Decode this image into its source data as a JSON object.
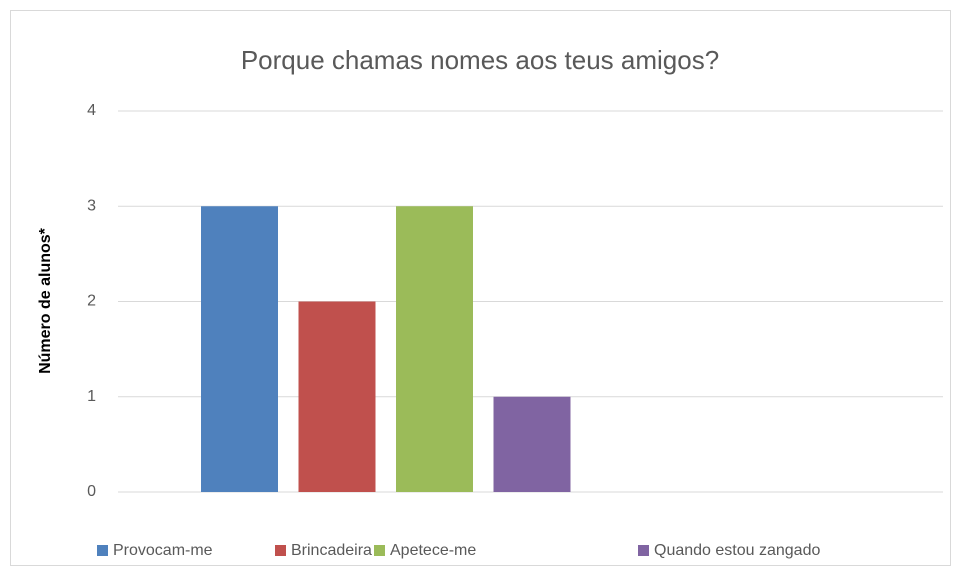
{
  "chart_data": {
    "type": "bar",
    "title": "Porque chamas nomes aos teus amigos?",
    "y_label": "Número de alunos*",
    "categories": [
      null
    ],
    "series": [
      {
        "name": "Provocam-me",
        "color": "#4f81bd",
        "values": [
          3
        ]
      },
      {
        "name": "Brincadeira",
        "color": "#c0504d",
        "values": [
          2
        ]
      },
      {
        "name": "Apetece-me",
        "color": "#9bbb59",
        "values": [
          3
        ]
      },
      {
        "name": "Quando estou zangado",
        "color": "#8064a2",
        "values": [
          1
        ]
      }
    ],
    "ylim": [
      0,
      4
    ],
    "yticks": [
      0,
      1,
      2,
      3,
      4
    ],
    "grid": true,
    "legend": "bottom"
  }
}
